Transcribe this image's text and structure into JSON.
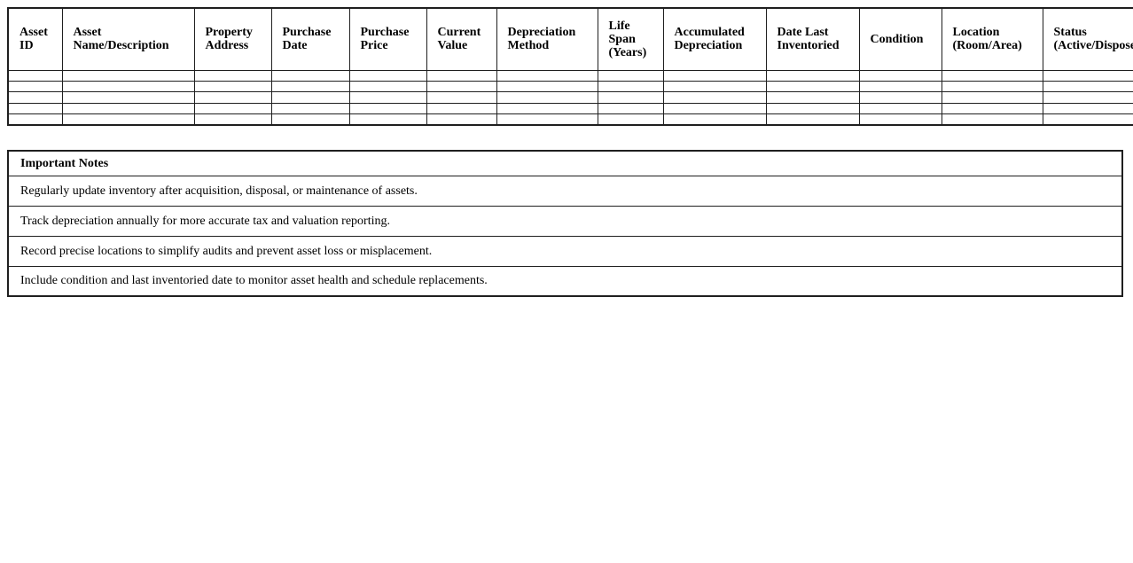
{
  "colors": {
    "page_background": "#ffffff",
    "table_border": "#1f1f1f",
    "text": "#000000"
  },
  "asset_table": {
    "columns": [
      {
        "id": "asset-id",
        "label": "Asset ID"
      },
      {
        "id": "asset-name-description",
        "label": "Asset Name/Description"
      },
      {
        "id": "property-address",
        "label": "Property Address"
      },
      {
        "id": "purchase-date",
        "label": "Purchase Date"
      },
      {
        "id": "purchase-price",
        "label": "Purchase Price"
      },
      {
        "id": "current-value",
        "label": "Current Value"
      },
      {
        "id": "depreciation-method",
        "label": "Depreciation Method"
      },
      {
        "id": "life-span-years",
        "label": "Life Span (Years)"
      },
      {
        "id": "accumulated-depreciation",
        "label": "Accumulated Depreciation"
      },
      {
        "id": "date-last-inventoried",
        "label": "Date Last Inventoried"
      },
      {
        "id": "condition",
        "label": "Condition"
      },
      {
        "id": "location-room-area",
        "label": "Location (Room/Area)"
      },
      {
        "id": "status-active-disposed",
        "label": "Status (Active/Disposed)"
      }
    ],
    "empty_row_count": 5,
    "empty_cell_value": ""
  },
  "notes_table": {
    "header": "Important Notes",
    "notes": [
      "Regularly update inventory after acquisition, disposal, or maintenance of assets.",
      "Track depreciation annually for more accurate tax and valuation reporting.",
      "Record precise locations to simplify audits and prevent asset loss or misplacement.",
      "Include condition and last inventoried date to monitor asset health and schedule replacements."
    ]
  }
}
